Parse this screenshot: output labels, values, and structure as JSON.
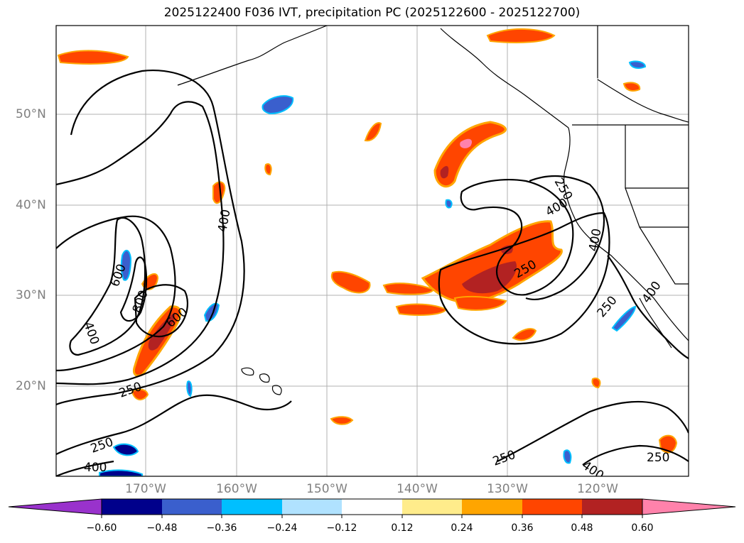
{
  "title": "2025122400 F036 IVT, precipitation PC (2025122600 - 2025122700)",
  "lat_labels": [
    "50°N",
    "40°N",
    "30°N",
    "20°N"
  ],
  "lon_labels": [
    "170°W",
    "160°W",
    "150°W",
    "140°W",
    "130°W",
    "120°W"
  ],
  "ivt_contour_labels": [
    "400",
    "600",
    "800",
    "400",
    "600",
    "250",
    "250",
    "400",
    "250",
    "400",
    "250",
    "400",
    "250",
    "400",
    "250",
    "250",
    "400"
  ],
  "colorbar": {
    "ticks": [
      "−0.60",
      "−0.48",
      "−0.36",
      "−0.24",
      "−0.12",
      "0.12",
      "0.24",
      "0.36",
      "0.48",
      "0.60"
    ],
    "colors": [
      "#9932cc",
      "#00008b",
      "#3a5fcd",
      "#00bfff",
      "#b0e2ff",
      "#ffffff",
      "#ffec8b",
      "#ffa500",
      "#ff4500",
      "#b22222",
      "#ff82ab"
    ]
  },
  "palette": {
    "coast": "#000000",
    "grid": "#b0b0b0",
    "ivt_contour": "#000000"
  }
}
